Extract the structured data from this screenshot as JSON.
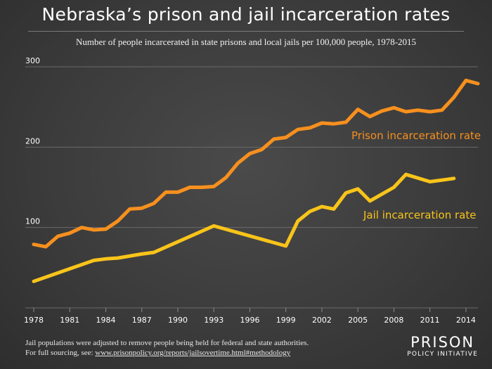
{
  "chart_data": {
    "type": "line",
    "title": "Nebraska’s prison and jail incarceration rates",
    "subtitle": "Number of people incarcerated in state prisons and local jails per 100,000 people, 1978-2015",
    "xlabel": "",
    "ylabel": "",
    "xlim": [
      1978,
      2015
    ],
    "ylim": [
      0,
      300
    ],
    "y_ticks": [
      100,
      200,
      300
    ],
    "x_ticks": [
      1978,
      1981,
      1984,
      1987,
      1990,
      1993,
      1996,
      1999,
      2002,
      2005,
      2008,
      2011,
      2014
    ],
    "grid": true,
    "series": [
      {
        "name": "Prison incarceration rate",
        "color": "#f7901e",
        "x": [
          1978,
          1979,
          1980,
          1981,
          1982,
          1983,
          1984,
          1985,
          1986,
          1987,
          1988,
          1989,
          1990,
          1991,
          1992,
          1993,
          1994,
          1995,
          1996,
          1997,
          1998,
          1999,
          2000,
          2001,
          2002,
          2003,
          2004,
          2005,
          2006,
          2007,
          2008,
          2009,
          2010,
          2011,
          2012,
          2013,
          2014,
          2015
        ],
        "values": [
          79,
          76,
          89,
          93,
          100,
          97,
          98,
          108,
          123,
          124,
          130,
          144,
          144,
          150,
          150,
          151,
          162,
          180,
          192,
          197,
          210,
          212,
          222,
          224,
          230,
          229,
          231,
          247,
          238,
          245,
          249,
          244,
          246,
          244,
          246,
          262,
          283,
          279
        ]
      },
      {
        "name": "Jail incarceration rate",
        "color": "#f9c41a",
        "x": [
          1978,
          1983,
          1984,
          1985,
          1987,
          1988,
          1993,
          1999,
          2000,
          2001,
          2002,
          2003,
          2004,
          2005,
          2006,
          2008,
          2009,
          2011,
          2013
        ],
        "values": [
          33,
          59,
          61,
          62,
          67,
          69,
          102,
          77,
          108,
          120,
          126,
          123,
          143,
          148,
          133,
          150,
          166,
          157,
          161
        ]
      }
    ],
    "annotations": [
      "Prison incarceration rate",
      "Jail incarceration rate"
    ]
  },
  "footnote": {
    "line1": "Jail populations were adjusted to remove people being held for federal and state authorities.",
    "line2_prefix": "For full sourcing, see: ",
    "line2_url": "www.prisonpolicy.org/reports/jailsovertime.html#methodology"
  },
  "logo": {
    "line1": "PRISON",
    "line2": "POLICY INITIATIVE"
  }
}
